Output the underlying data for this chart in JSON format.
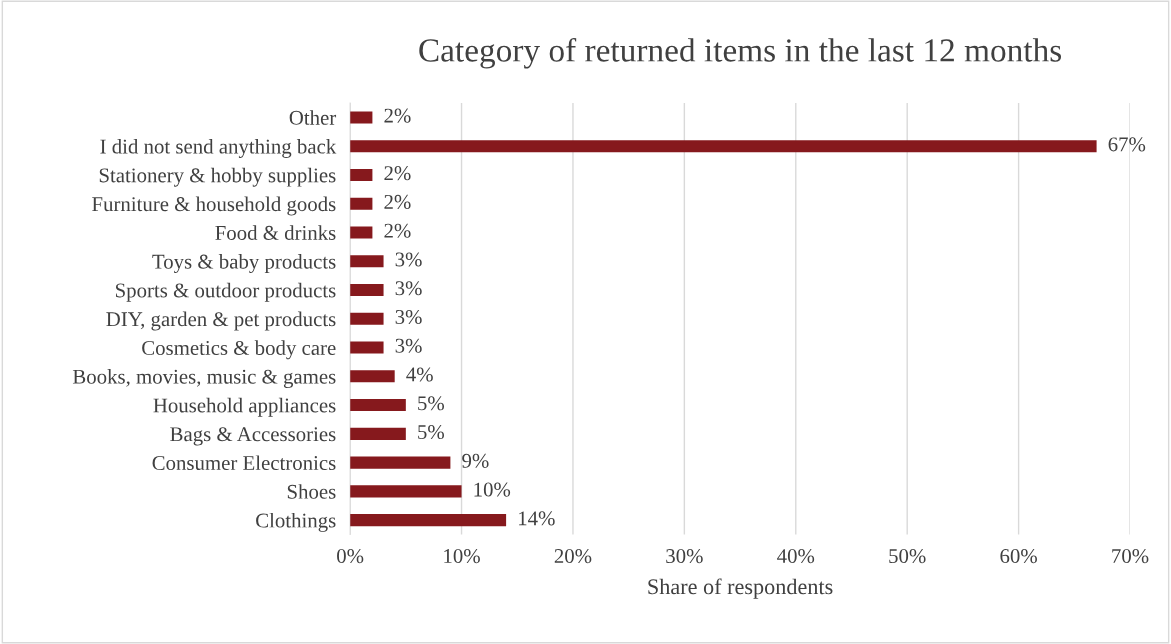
{
  "chart_data": {
    "type": "bar",
    "orientation": "horizontal",
    "title": "Category of returned items in the last 12 months",
    "xlabel": "Share of respondents",
    "categories": [
      "Other",
      "I did not send anything back",
      "Stationery & hobby supplies",
      "Furniture & household goods",
      "Food & drinks",
      "Toys & baby products",
      "Sports & outdoor products",
      "DIY, garden & pet products",
      "Cosmetics & body care",
      "Books, movies, music & games",
      "Household appliances",
      "Bags & Accessories",
      "Consumer Electronics",
      "Shoes",
      "Clothings"
    ],
    "values": [
      2,
      67,
      2,
      2,
      2,
      3,
      3,
      3,
      3,
      4,
      5,
      5,
      9,
      10,
      14
    ],
    "value_labels": [
      "2%",
      "67%",
      "2%",
      "2%",
      "2%",
      "3%",
      "3%",
      "3%",
      "3%",
      "4%",
      "5%",
      "5%",
      "9%",
      "10%",
      "14%"
    ],
    "color": "#86191d",
    "xlim": [
      0,
      70
    ],
    "xticks": [
      {
        "value": 0,
        "label": "0%"
      },
      {
        "value": 10,
        "label": "10%"
      },
      {
        "value": 20,
        "label": "20%"
      },
      {
        "value": 30,
        "label": "30%"
      },
      {
        "value": 40,
        "label": "40%"
      },
      {
        "value": 50,
        "label": "50%"
      },
      {
        "value": 60,
        "label": "60%"
      },
      {
        "value": 70,
        "label": "70%"
      }
    ],
    "grid": "x",
    "legend": false
  }
}
